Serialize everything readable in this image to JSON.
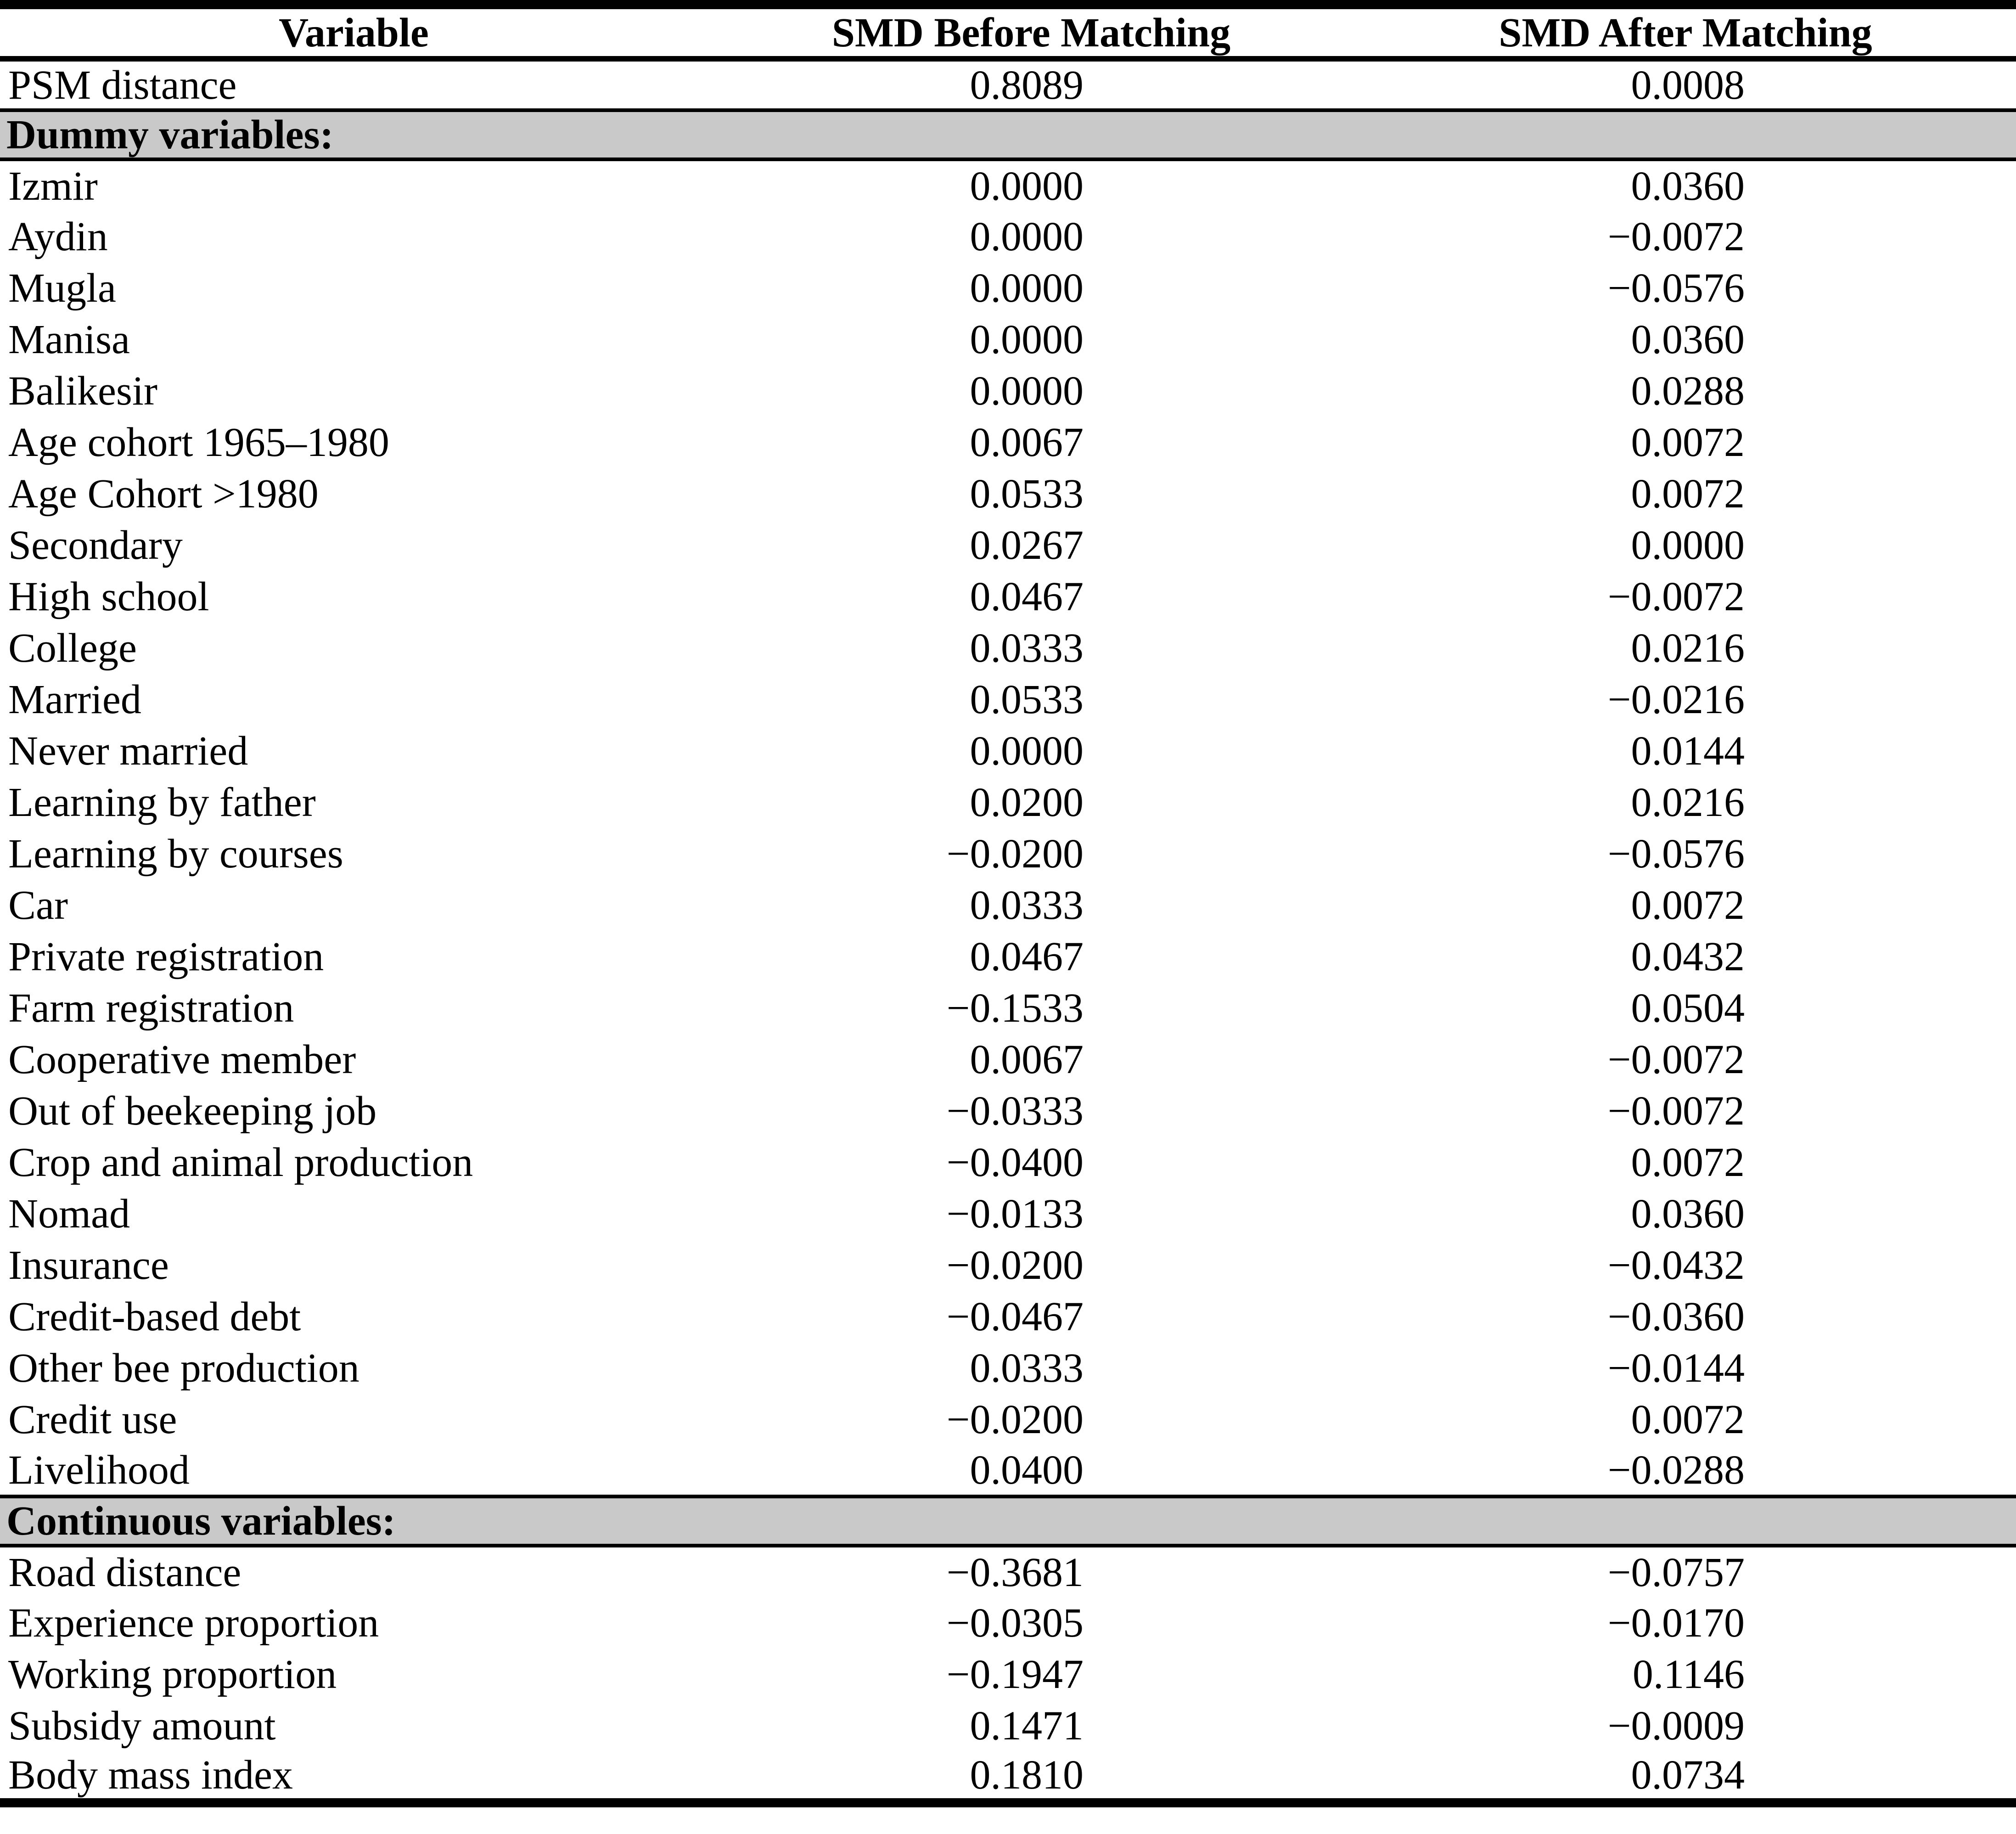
{
  "table": {
    "columns": [
      "Variable",
      "SMD Before Matching",
      "SMD After Matching"
    ],
    "section_bg_color": "#c9c9c9",
    "rule_color": "#000000",
    "rows": [
      {
        "type": "data",
        "variable": "PSM distance",
        "before": "0.8089",
        "after": "0.0008"
      },
      {
        "type": "section",
        "label": "Dummy variables:"
      },
      {
        "type": "data",
        "variable": "Izmir",
        "before": "0.0000",
        "after": "0.0360"
      },
      {
        "type": "data",
        "variable": "Aydin",
        "before": "0.0000",
        "after": "−0.0072"
      },
      {
        "type": "data",
        "variable": "Mugla",
        "before": "0.0000",
        "after": "−0.0576"
      },
      {
        "type": "data",
        "variable": "Manisa",
        "before": "0.0000",
        "after": "0.0360"
      },
      {
        "type": "data",
        "variable": "Balikesir",
        "before": "0.0000",
        "after": "0.0288"
      },
      {
        "type": "data",
        "variable": "Age cohort 1965–1980",
        "before": "0.0067",
        "after": "0.0072"
      },
      {
        "type": "data",
        "variable": "Age Cohort >1980",
        "before": "0.0533",
        "after": "0.0072"
      },
      {
        "type": "data",
        "variable": "Secondary",
        "before": "0.0267",
        "after": "0.0000"
      },
      {
        "type": "data",
        "variable": "High school",
        "before": "0.0467",
        "after": "−0.0072"
      },
      {
        "type": "data",
        "variable": "College",
        "before": "0.0333",
        "after": "0.0216"
      },
      {
        "type": "data",
        "variable": "Married",
        "before": "0.0533",
        "after": "−0.0216"
      },
      {
        "type": "data",
        "variable": "Never married",
        "before": "0.0000",
        "after": "0.0144"
      },
      {
        "type": "data",
        "variable": "Learning by father",
        "before": "0.0200",
        "after": "0.0216"
      },
      {
        "type": "data",
        "variable": "Learning by courses",
        "before": "−0.0200",
        "after": "−0.0576"
      },
      {
        "type": "data",
        "variable": "Car",
        "before": "0.0333",
        "after": "0.0072"
      },
      {
        "type": "data",
        "variable": "Private registration",
        "before": "0.0467",
        "after": "0.0432"
      },
      {
        "type": "data",
        "variable": "Farm registration",
        "before": "−0.1533",
        "after": "0.0504"
      },
      {
        "type": "data",
        "variable": "Cooperative member",
        "before": "0.0067",
        "after": "−0.0072"
      },
      {
        "type": "data",
        "variable": "Out of beekeeping job",
        "before": "−0.0333",
        "after": "−0.0072"
      },
      {
        "type": "data",
        "variable": "Crop and animal production",
        "before": "−0.0400",
        "after": "0.0072"
      },
      {
        "type": "data",
        "variable": "Nomad",
        "before": "−0.0133",
        "after": "0.0360"
      },
      {
        "type": "data",
        "variable": "Insurance",
        "before": "−0.0200",
        "after": "−0.0432"
      },
      {
        "type": "data",
        "variable": "Credit-based debt",
        "before": "−0.0467",
        "after": "−0.0360"
      },
      {
        "type": "data",
        "variable": "Other bee production",
        "before": "0.0333",
        "after": "−0.0144"
      },
      {
        "type": "data",
        "variable": "Credit use",
        "before": "−0.0200",
        "after": "0.0072"
      },
      {
        "type": "data",
        "variable": "Livelihood",
        "before": "0.0400",
        "after": "−0.0288"
      },
      {
        "type": "section",
        "label": "Continuous variables:"
      },
      {
        "type": "data",
        "variable": "Road distance",
        "before": "−0.3681",
        "after": "−0.0757"
      },
      {
        "type": "data",
        "variable": "Experience proportion",
        "before": "−0.0305",
        "after": "−0.0170"
      },
      {
        "type": "data",
        "variable": "Working proportion",
        "before": "−0.1947",
        "after": "0.1146"
      },
      {
        "type": "data",
        "variable": "Subsidy amount",
        "before": "0.1471",
        "after": "−0.0009"
      },
      {
        "type": "data",
        "variable": "Body mass index",
        "before": "0.1810",
        "after": "0.0734"
      }
    ]
  }
}
